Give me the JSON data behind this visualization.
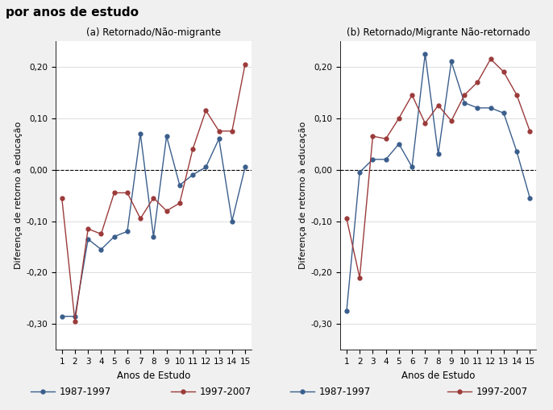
{
  "anos": [
    1,
    2,
    3,
    4,
    5,
    6,
    7,
    8,
    9,
    10,
    11,
    12,
    13,
    14,
    15
  ],
  "panel_a_1987": [
    -0.285,
    -0.285,
    -0.135,
    -0.155,
    -0.13,
    -0.12,
    0.07,
    -0.13,
    0.065,
    -0.03,
    -0.01,
    0.005,
    0.06,
    -0.1,
    0.005
  ],
  "panel_a_1997": [
    -0.055,
    -0.295,
    -0.115,
    -0.125,
    -0.045,
    -0.045,
    -0.095,
    -0.055,
    -0.08,
    -0.065,
    0.04,
    0.115,
    0.075,
    0.075,
    0.205
  ],
  "panel_b_1987": [
    -0.275,
    -0.005,
    0.02,
    0.02,
    0.05,
    0.005,
    0.225,
    0.03,
    0.21,
    0.13,
    0.12,
    0.12,
    0.11,
    0.035,
    -0.055
  ],
  "panel_b_1997": [
    -0.095,
    -0.21,
    0.065,
    0.06,
    0.1,
    0.145,
    0.09,
    0.125,
    0.095,
    0.145,
    0.17,
    0.215,
    0.19,
    0.145,
    0.075
  ],
  "color_1987": "#3a5e8c",
  "color_1997": "#9b3a3a",
  "title_a": "(a) Retornado/Não-migrante",
  "title_b": "(b) Retornado/Migrante Não-retornado",
  "xlabel": "Anos de Estudo",
  "ylabel": "Diferença de retorno à educação",
  "ylim": [
    -0.35,
    0.25
  ],
  "yticks": [
    -0.3,
    -0.2,
    -0.1,
    0.0,
    0.1,
    0.2
  ],
  "ytick_labels": [
    "-0,30",
    "-0,20",
    "-0,10",
    "0,00",
    "0,10",
    "0,20"
  ],
  "legend_1987": "1987-1997",
  "legend_1997": "1997-2007",
  "suptitle": "por anos de estudo",
  "bg_color": "#f0f0f0"
}
